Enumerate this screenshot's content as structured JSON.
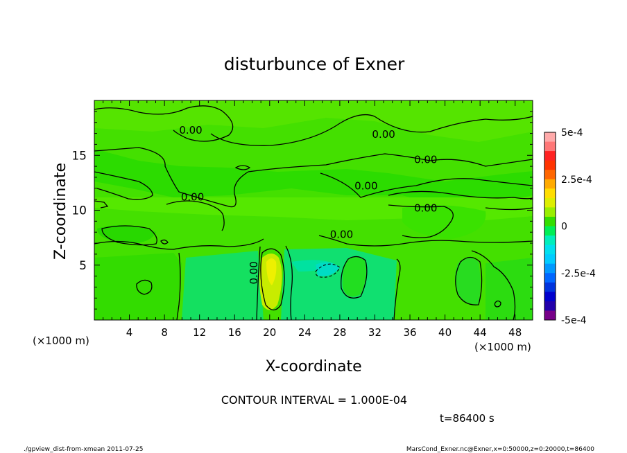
{
  "chart_data": {
    "type": "heatmap",
    "title": "disturbunce of Exner",
    "xlabel": "X-coordinate",
    "ylabel": "Z-coordinate",
    "x_unit": "(×1000 m)",
    "y_unit": "(×1000 m)",
    "xlim": [
      0,
      50
    ],
    "ylim": [
      0,
      20
    ],
    "x_ticks": [
      4,
      8,
      12,
      16,
      20,
      24,
      28,
      32,
      36,
      40,
      44,
      48
    ],
    "y_ticks": [
      5,
      10,
      15
    ],
    "contour_interval_text": "CONTOUR INTERVAL = 1.000E-04",
    "contour_labels": [
      {
        "text": "0.00",
        "x": 11,
        "z": 17.3
      },
      {
        "text": "0.00",
        "x": 33,
        "z": 16.9
      },
      {
        "text": "0.00",
        "x": 37.8,
        "z": 14.6
      },
      {
        "text": "0.00",
        "x": 31,
        "z": 12.2
      },
      {
        "text": "0.00",
        "x": 11.2,
        "z": 11.2
      },
      {
        "text": "0.00",
        "x": 37.8,
        "z": 10.2
      },
      {
        "text": "0.00",
        "x": 28.2,
        "z": 7.8
      },
      {
        "text": "0.00",
        "x": 18.2,
        "z": 4.3,
        "rotated": true
      }
    ],
    "colorbar": {
      "min": -0.0005,
      "max": 0.0005,
      "tick_labels": [
        "5e-4",
        "2.5e-4",
        "0",
        "-2.5e-4",
        "-5e-4"
      ],
      "tick_values": [
        0.0005,
        0.00025,
        0,
        -0.00025,
        -0.0005
      ],
      "colors_top_to_bottom": [
        "#ffaaaa",
        "#ff7777",
        "#ff2222",
        "#ff3300",
        "#ff6600",
        "#ffaa00",
        "#ffdd00",
        "#ddee00",
        "#99ee00",
        "#33dd00",
        "#00ee55",
        "#00eebb",
        "#00e0ee",
        "#00ccff",
        "#0099ff",
        "#0066ff",
        "#0033dd",
        "#0000cc",
        "#2200aa",
        "#770088"
      ]
    },
    "time_label": "t=86400 s"
  },
  "footer": {
    "left": "./gpview_dist-from-xmean  2011-07-25",
    "right": "MarsCond_Exner.nc@Exner,x=0:50000,z=0:20000,t=86400"
  }
}
